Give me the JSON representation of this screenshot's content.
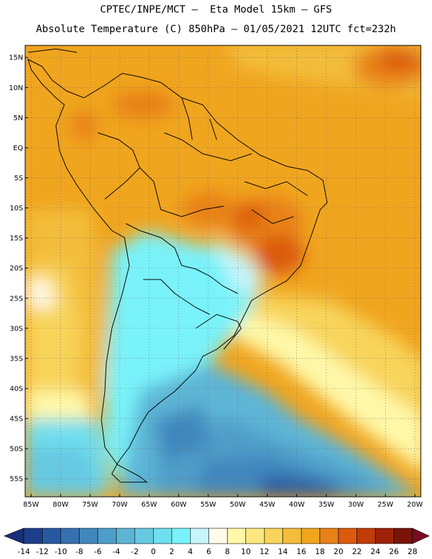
{
  "header": {
    "line1": "CPTEC/INPE/MCT –  Eta Model 15km – GFS",
    "line2": "Absolute Temperature (C) 850hPa – 01/05/2021 12UTC fct=232h"
  },
  "map": {
    "lat_labels": [
      "15N",
      "10N",
      "5N",
      "EQ",
      "5S",
      "10S",
      "15S",
      "20S",
      "25S",
      "30S",
      "35S",
      "40S",
      "45S",
      "50S",
      "55S"
    ],
    "lon_labels": [
      "85W",
      "80W",
      "75W",
      "70W",
      "65W",
      "60W",
      "55W",
      "50W",
      "45W",
      "40W",
      "35W",
      "30W",
      "25W",
      "20W"
    ],
    "lon_range": [
      -86,
      -19
    ],
    "lat_range": [
      -58,
      17
    ],
    "region": "South America and adjacent Atlantic/Pacific"
  },
  "colorbar": {
    "tick_labels": [
      "-14",
      "-12",
      "-10",
      "-8",
      "-6",
      "-4",
      "-2",
      "0",
      "2",
      "4",
      "6",
      "8",
      "10",
      "12",
      "14",
      "16",
      "18",
      "20",
      "22",
      "24",
      "26",
      "28"
    ],
    "colors": [
      "#1d3f8b",
      "#2958a3",
      "#3571b0",
      "#4187bd",
      "#4f9ec9",
      "#5db5d6",
      "#66c9e2",
      "#6fdeee",
      "#79f2fa",
      "#c7f5fb",
      "#fffbea",
      "#fff8a8",
      "#fbe880",
      "#f8d45a",
      "#f3bd3a",
      "#f0a51f",
      "#e88116",
      "#dc5a0d",
      "#c23b08",
      "#9e2306",
      "#7a1406"
    ],
    "left_extend_color": "#1a2d78",
    "right_extend_color": "#7b0a25"
  }
}
